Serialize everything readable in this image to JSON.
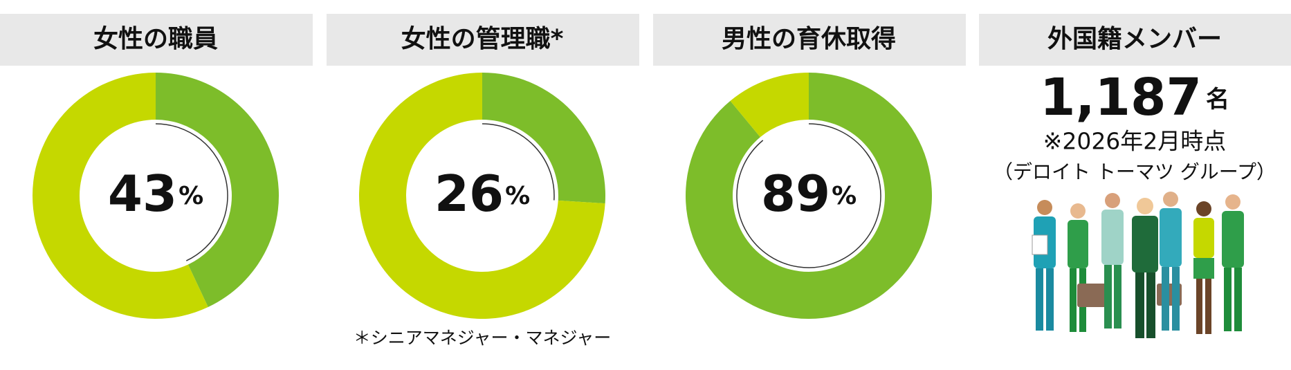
{
  "chart_data": [
    {
      "type": "donut",
      "title": "女性の職員",
      "values": [
        43,
        57
      ],
      "colors": [
        "#7dbd2a",
        "#c5d800"
      ],
      "unit": "%"
    },
    {
      "type": "donut",
      "title": "女性の管理職*",
      "values": [
        26,
        74
      ],
      "colors": [
        "#7dbd2a",
        "#c5d800"
      ],
      "unit": "%",
      "note": "＊シニアマネジャー・マネジャー"
    },
    {
      "type": "donut",
      "title": "男性の育休取得",
      "values": [
        89,
        11
      ],
      "colors": [
        "#7dbd2a",
        "#c5d800"
      ],
      "unit": "%"
    }
  ],
  "stat": {
    "title": "外国籍メンバー",
    "value": 1187,
    "value_label": "1,187",
    "unit": "名",
    "note": "※2026年2月時点",
    "source": "（デロイト トーマツ グループ）"
  }
}
